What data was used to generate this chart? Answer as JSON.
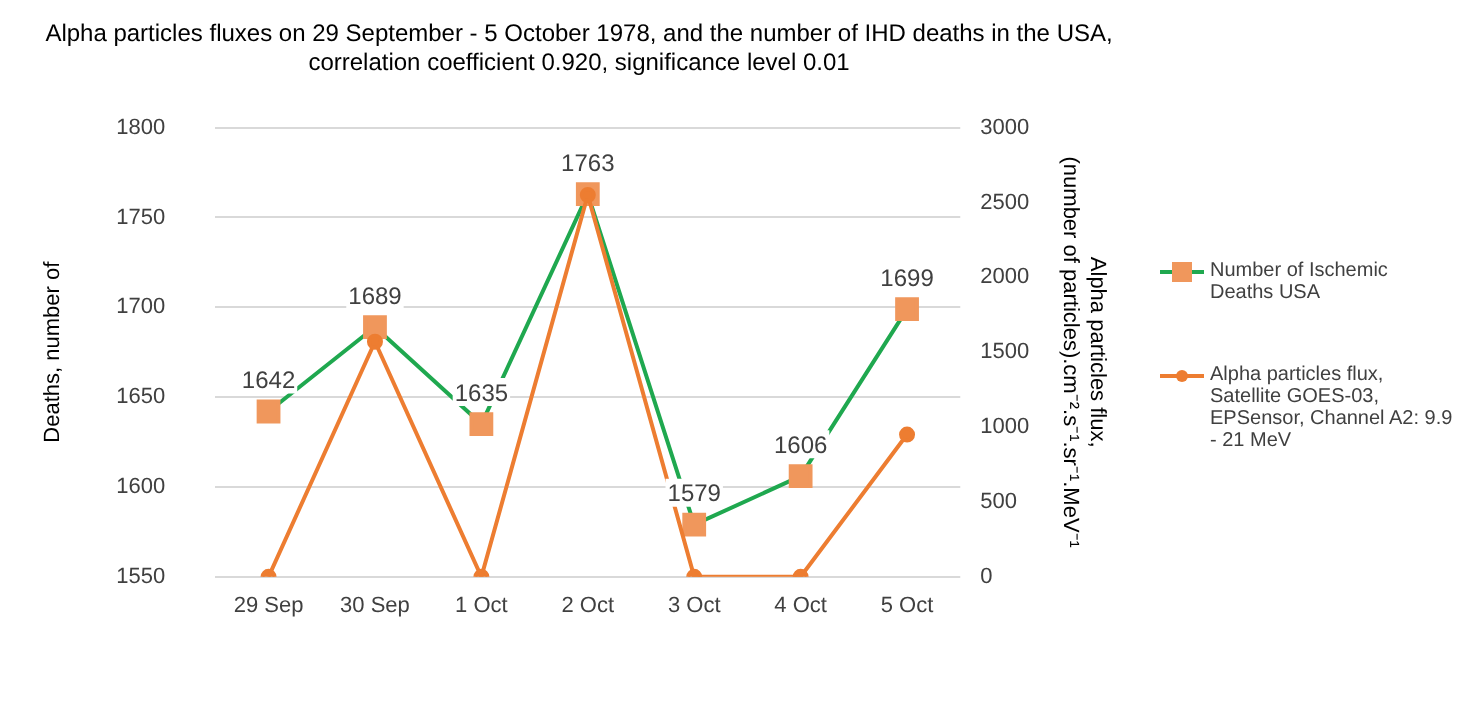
{
  "chart_data": {
    "type": "line",
    "title": "Alpha particles fluxes on 29 September - 5 October 1978, and the number of IHD deaths in the USA,\ncorrelation coefficient 0.920, significance level 0.01",
    "categories": [
      "29 Sep",
      "30 Sep",
      "1 Oct",
      "2 Oct",
      "3 Oct",
      "4 Oct",
      "5 Oct"
    ],
    "series": [
      {
        "name": "Number of Ischemic Deaths USA",
        "color": "#1fa84f",
        "colors": [
          "#f0975c",
          "#f0975c",
          "#f0975c",
          "#f0975c",
          "#f0975c",
          "#f0975c",
          "#f0975c"
        ],
        "marker": "square",
        "values": [
          1642,
          1689,
          1635,
          1763,
          1579,
          1606,
          1699
        ],
        "value_labels": [
          "1642",
          "1689",
          "1635",
          "1763",
          "1579",
          "1606",
          "1699"
        ]
      },
      {
        "name": "Alpha particles flux, Satellite GOES-03, EPSensor, Channel A2: 9.9 - 21 MeV",
        "color": "#ed7d31",
        "marker": "circle",
        "axis": "y2",
        "values": [
          0,
          1570,
          0,
          2550,
          0,
          0,
          950
        ]
      }
    ],
    "ylabel": "Deaths, number of",
    "y2label": "Alpha particles flux,\n(number of particles).cm⁻².s⁻¹.sr⁻¹.MeV⁻¹",
    "ylim": [
      1550,
      1800
    ],
    "yticks": [
      1550,
      1600,
      1650,
      1700,
      1750,
      1800
    ],
    "y2lim": [
      0,
      3000
    ],
    "y2ticks": [
      0,
      500,
      1000,
      1500,
      2000,
      2500,
      3000
    ],
    "grid": "y",
    "legend": "right"
  }
}
